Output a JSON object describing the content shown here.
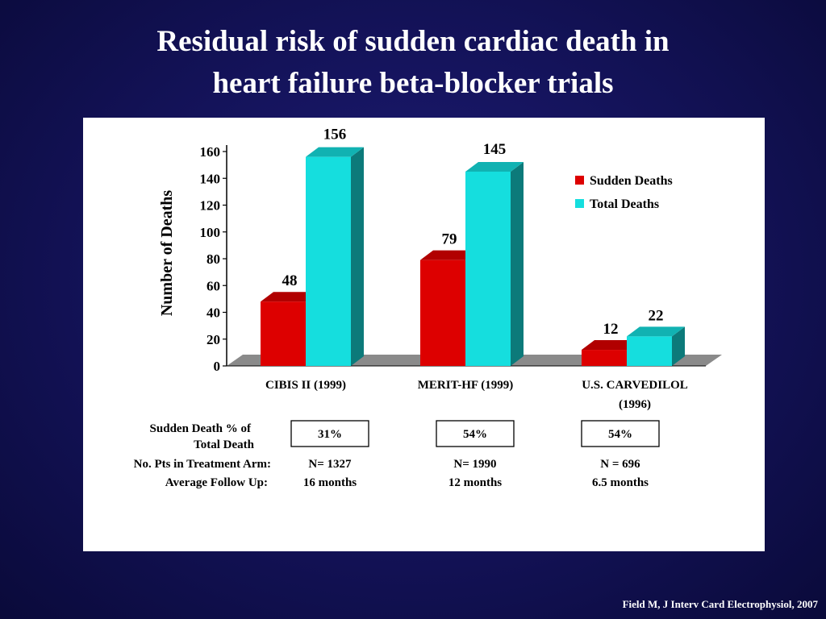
{
  "title": {
    "line1": "Residual risk of sudden cardiac death in",
    "line2": "heart failure beta-blocker trials"
  },
  "citation": "Field M, J Interv Card Electrophysiol, 2007",
  "colors": {
    "background": "#131257",
    "sudden_front": "#dd0000",
    "total_front": "#15dede",
    "floor": "#8a8a8a"
  },
  "table": {
    "row_labels": [
      [
        "Sudden Death % of",
        "Total Death"
      ],
      [
        "No. Pts in Treatment Arm:"
      ],
      [
        "Average Follow Up:"
      ]
    ],
    "percent": [
      "31%",
      "54%",
      "54%"
    ],
    "patients": [
      "N= 1327",
      "N= 1990",
      "N = 696"
    ],
    "follow_up": [
      "16 months",
      "12 months",
      "6.5 months"
    ]
  },
  "chart_data": {
    "type": "bar",
    "ylabel": "Number of Deaths",
    "ylim": [
      0,
      160
    ],
    "yticks": [
      0,
      20,
      40,
      60,
      80,
      100,
      120,
      140,
      160
    ],
    "legend_position": "top-right",
    "categories": [
      [
        "CIBIS II (1999)"
      ],
      [
        "MERIT-HF (1999)"
      ],
      [
        "U.S. CARVEDILOL",
        "(1996)"
      ]
    ],
    "series": [
      {
        "name": "Sudden Deaths",
        "color": "#dd0000",
        "values": [
          48,
          79,
          12
        ]
      },
      {
        "name": "Total Deaths",
        "color": "#15dede",
        "values": [
          156,
          145,
          22
        ]
      }
    ],
    "data_labels": [
      [
        "48",
        "79",
        "12"
      ],
      [
        "156",
        "145",
        "22"
      ]
    ]
  }
}
